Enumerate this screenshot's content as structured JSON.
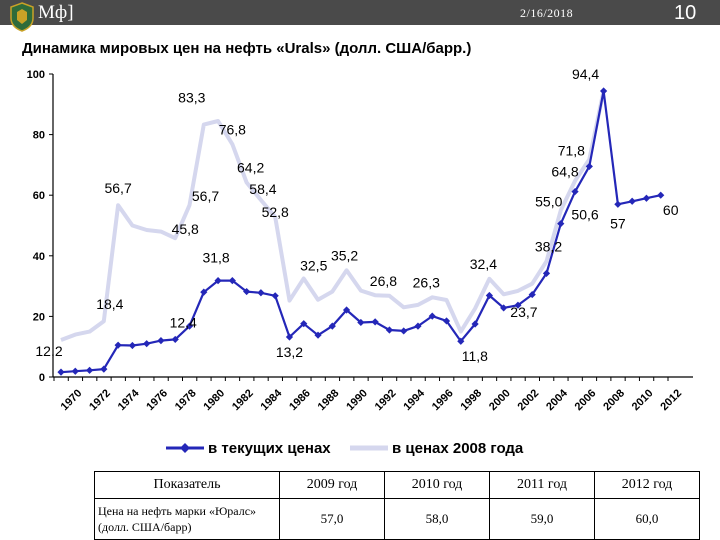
{
  "header": {
    "brand": "Мф]",
    "date": "2/16/2018",
    "page_number": "10"
  },
  "chart_data": {
    "type": "line",
    "title": "Динамика мировых цен на нефть «Urals» (долл. США/барр.)",
    "ylim": [
      0,
      100
    ],
    "yticks": [
      "0",
      "20",
      "40",
      "60",
      "80",
      "100"
    ],
    "xlim": [
      1970,
      2012
    ],
    "xticks": [
      "1970",
      "1972",
      "1974",
      "1976",
      "1978",
      "1980",
      "1982",
      "1984",
      "1986",
      "1988",
      "1990",
      "1992",
      "1994",
      "1996",
      "1998",
      "2000",
      "2002",
      "2004",
      "2006",
      "2008",
      "2010",
      "2012"
    ],
    "grid": false,
    "legend_position": "bottom",
    "series": [
      {
        "name": "в текущих ценах",
        "color": "#2427b8",
        "marker": "diamond",
        "x": [
          1970,
          1971,
          1972,
          1973,
          1974,
          1975,
          1976,
          1977,
          1978,
          1979,
          1980,
          1981,
          1982,
          1983,
          1984,
          1985,
          1986,
          1987,
          1988,
          1989,
          1990,
          1991,
          1992,
          1993,
          1994,
          1995,
          1996,
          1997,
          1998,
          1999,
          2000,
          2001,
          2002,
          2003,
          2004,
          2005,
          2006,
          2007,
          2008,
          2009,
          2010,
          2011,
          2012
        ],
        "y": [
          1.6,
          1.9,
          2.2,
          2.6,
          10.5,
          10.4,
          11.0,
          12.0,
          12.4,
          16.8,
          28.0,
          31.8,
          31.8,
          28.2,
          27.8,
          26.8,
          13.2,
          17.6,
          13.8,
          16.8,
          22.1,
          18.0,
          18.2,
          15.5,
          15.2,
          16.8,
          20.1,
          18.5,
          11.8,
          17.5,
          26.9,
          22.8,
          23.7,
          27.2,
          34.2,
          50.6,
          61.2,
          69.5,
          94.4,
          57.0,
          58.0,
          59.0,
          60.0
        ]
      },
      {
        "name": "в ценах 2008 года",
        "color": "#d5d7ee",
        "x": [
          1970,
          1971,
          1972,
          1973,
          1974,
          1975,
          1976,
          1977,
          1978,
          1979,
          1980,
          1981,
          1982,
          1983,
          1984,
          1985,
          1986,
          1987,
          1988,
          1989,
          1990,
          1991,
          1992,
          1993,
          1994,
          1995,
          1996,
          1997,
          1998,
          1999,
          2000,
          2001,
          2002,
          2003,
          2004,
          2005,
          2006,
          2007,
          2008
        ],
        "y": [
          12.2,
          14.0,
          15.0,
          18.4,
          56.7,
          50.0,
          48.5,
          48.0,
          45.8,
          56.7,
          83.3,
          84.5,
          76.8,
          64.2,
          58.4,
          52.8,
          25.2,
          32.5,
          25.5,
          28.2,
          35.2,
          28.5,
          27.0,
          26.8,
          23.0,
          23.8,
          26.3,
          25.4,
          15.0,
          22.6,
          32.4,
          27.3,
          28.4,
          30.8,
          38.2,
          55.0,
          64.8,
          71.8,
          94.4
        ]
      }
    ],
    "annotations": [
      {
        "text": "12,2",
        "x": 1970,
        "y": 12.2
      },
      {
        "text": "18,4",
        "x": 1973,
        "y": 18.4
      },
      {
        "text": "56,7",
        "x": 1974,
        "y": 56.7
      },
      {
        "text": "45,8",
        "x": 1978,
        "y": 45.8
      },
      {
        "text": "12,4",
        "x": 1978,
        "y": 12.4
      },
      {
        "text": "83,3",
        "x": 1980,
        "y": 83.3
      },
      {
        "text": "56,7",
        "x": 1979,
        "y": 56.7
      },
      {
        "text": "31,8",
        "x": 1981,
        "y": 31.8
      },
      {
        "text": "76,8",
        "x": 1982,
        "y": 76.8
      },
      {
        "text": "64,2",
        "x": 1983,
        "y": 64.2
      },
      {
        "text": "58,4",
        "x": 1984,
        "y": 58.4
      },
      {
        "text": "52,8",
        "x": 1985,
        "y": 52.8
      },
      {
        "text": "13,2",
        "x": 1986,
        "y": 13.2
      },
      {
        "text": "32,5",
        "x": 1987,
        "y": 32.5
      },
      {
        "text": "35,2",
        "x": 1990,
        "y": 35.2
      },
      {
        "text": "26,8",
        "x": 1993,
        "y": 26.8
      },
      {
        "text": "26,3",
        "x": 1996,
        "y": 26.3
      },
      {
        "text": "11,8",
        "x": 1998,
        "y": 11.8
      },
      {
        "text": "32,4",
        "x": 2000,
        "y": 32.4
      },
      {
        "text": "23,7",
        "x": 2002,
        "y": 23.7
      },
      {
        "text": "38,2",
        "x": 2004,
        "y": 38.2
      },
      {
        "text": "55,0",
        "x": 2005,
        "y": 55.0
      },
      {
        "text": "64,8",
        "x": 2006,
        "y": 64.8
      },
      {
        "text": "71,8",
        "x": 2007,
        "y": 71.8
      },
      {
        "text": "50,6",
        "x": 2006,
        "y": 50.6
      },
      {
        "text": "94,4",
        "x": 2008,
        "y": 94.4
      },
      {
        "text": "57",
        "x": 2009,
        "y": 57.0
      },
      {
        "text": "60",
        "x": 2012,
        "y": 60.0
      }
    ]
  },
  "table": {
    "header_label": "Показатель",
    "row_label": "Цена на нефть марки «Юралс» (долл. США/барр)",
    "columns": [
      {
        "year": "2009 год",
        "value": "57,0"
      },
      {
        "year": "2010 год",
        "value": "58,0"
      },
      {
        "year": "2011 год",
        "value": "59,0"
      },
      {
        "year": "2012 год",
        "value": "60,0"
      }
    ]
  }
}
